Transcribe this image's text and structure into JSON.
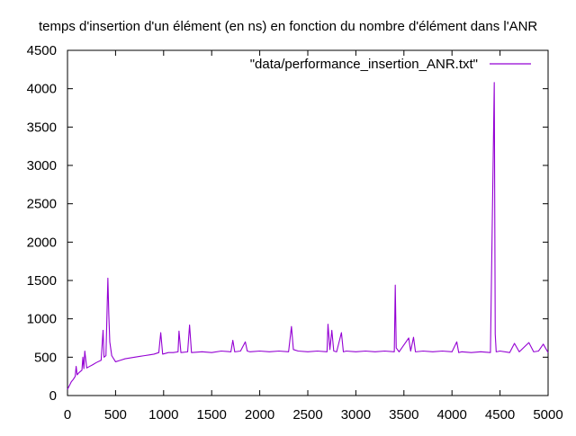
{
  "chart_data": {
    "type": "line",
    "title": "temps d'insertion d'un élément (en ns) en fonction du nombre d'élément dans l'ANR",
    "xlabel": "",
    "ylabel": "",
    "xlim": [
      0,
      5000
    ],
    "ylim": [
      0,
      4500
    ],
    "x_ticks": [
      0,
      500,
      1000,
      1500,
      2000,
      2500,
      3000,
      3500,
      4000,
      4500,
      5000
    ],
    "y_ticks": [
      0,
      500,
      1000,
      1500,
      2000,
      2500,
      3000,
      3500,
      4000,
      4500
    ],
    "grid": false,
    "legend_position": "top-right",
    "series": [
      {
        "name": "\"data/performance_insertion_ANR.txt\"",
        "color": "#9400d3",
        "points": [
          [
            0,
            80
          ],
          [
            20,
            130
          ],
          [
            40,
            180
          ],
          [
            60,
            210
          ],
          [
            80,
            250
          ],
          [
            90,
            380
          ],
          [
            100,
            270
          ],
          [
            120,
            300
          ],
          [
            150,
            330
          ],
          [
            160,
            500
          ],
          [
            170,
            350
          ],
          [
            180,
            580
          ],
          [
            200,
            360
          ],
          [
            230,
            380
          ],
          [
            260,
            400
          ],
          [
            300,
            430
          ],
          [
            350,
            460
          ],
          [
            370,
            850
          ],
          [
            380,
            500
          ],
          [
            400,
            520
          ],
          [
            420,
            1530
          ],
          [
            430,
            1050
          ],
          [
            440,
            700
          ],
          [
            460,
            520
          ],
          [
            500,
            440
          ],
          [
            550,
            460
          ],
          [
            600,
            480
          ],
          [
            650,
            490
          ],
          [
            700,
            500
          ],
          [
            750,
            510
          ],
          [
            800,
            520
          ],
          [
            850,
            530
          ],
          [
            900,
            540
          ],
          [
            950,
            560
          ],
          [
            970,
            820
          ],
          [
            990,
            540
          ],
          [
            1050,
            560
          ],
          [
            1100,
            560
          ],
          [
            1150,
            570
          ],
          [
            1160,
            840
          ],
          [
            1180,
            560
          ],
          [
            1250,
            570
          ],
          [
            1270,
            920
          ],
          [
            1290,
            560
          ],
          [
            1400,
            570
          ],
          [
            1500,
            560
          ],
          [
            1600,
            580
          ],
          [
            1700,
            570
          ],
          [
            1720,
            720
          ],
          [
            1740,
            570
          ],
          [
            1800,
            580
          ],
          [
            1850,
            700
          ],
          [
            1870,
            580
          ],
          [
            1900,
            570
          ],
          [
            2000,
            580
          ],
          [
            2100,
            570
          ],
          [
            2200,
            580
          ],
          [
            2300,
            570
          ],
          [
            2330,
            900
          ],
          [
            2350,
            600
          ],
          [
            2400,
            580
          ],
          [
            2500,
            570
          ],
          [
            2600,
            580
          ],
          [
            2700,
            570
          ],
          [
            2710,
            930
          ],
          [
            2730,
            600
          ],
          [
            2750,
            850
          ],
          [
            2770,
            580
          ],
          [
            2800,
            570
          ],
          [
            2850,
            820
          ],
          [
            2870,
            570
          ],
          [
            2900,
            580
          ],
          [
            3000,
            570
          ],
          [
            3100,
            580
          ],
          [
            3200,
            570
          ],
          [
            3300,
            580
          ],
          [
            3400,
            570
          ],
          [
            3410,
            1440
          ],
          [
            3420,
            620
          ],
          [
            3450,
            570
          ],
          [
            3550,
            750
          ],
          [
            3570,
            580
          ],
          [
            3600,
            760
          ],
          [
            3620,
            570
          ],
          [
            3700,
            580
          ],
          [
            3800,
            570
          ],
          [
            3900,
            580
          ],
          [
            4000,
            570
          ],
          [
            4050,
            700
          ],
          [
            4070,
            560
          ],
          [
            4100,
            570
          ],
          [
            4200,
            560
          ],
          [
            4300,
            570
          ],
          [
            4400,
            560
          ],
          [
            4440,
            4080
          ],
          [
            4450,
            800
          ],
          [
            4460,
            570
          ],
          [
            4500,
            580
          ],
          [
            4600,
            560
          ],
          [
            4650,
            680
          ],
          [
            4700,
            570
          ],
          [
            4800,
            690
          ],
          [
            4850,
            570
          ],
          [
            4900,
            580
          ],
          [
            4950,
            670
          ],
          [
            5000,
            560
          ]
        ]
      }
    ]
  }
}
